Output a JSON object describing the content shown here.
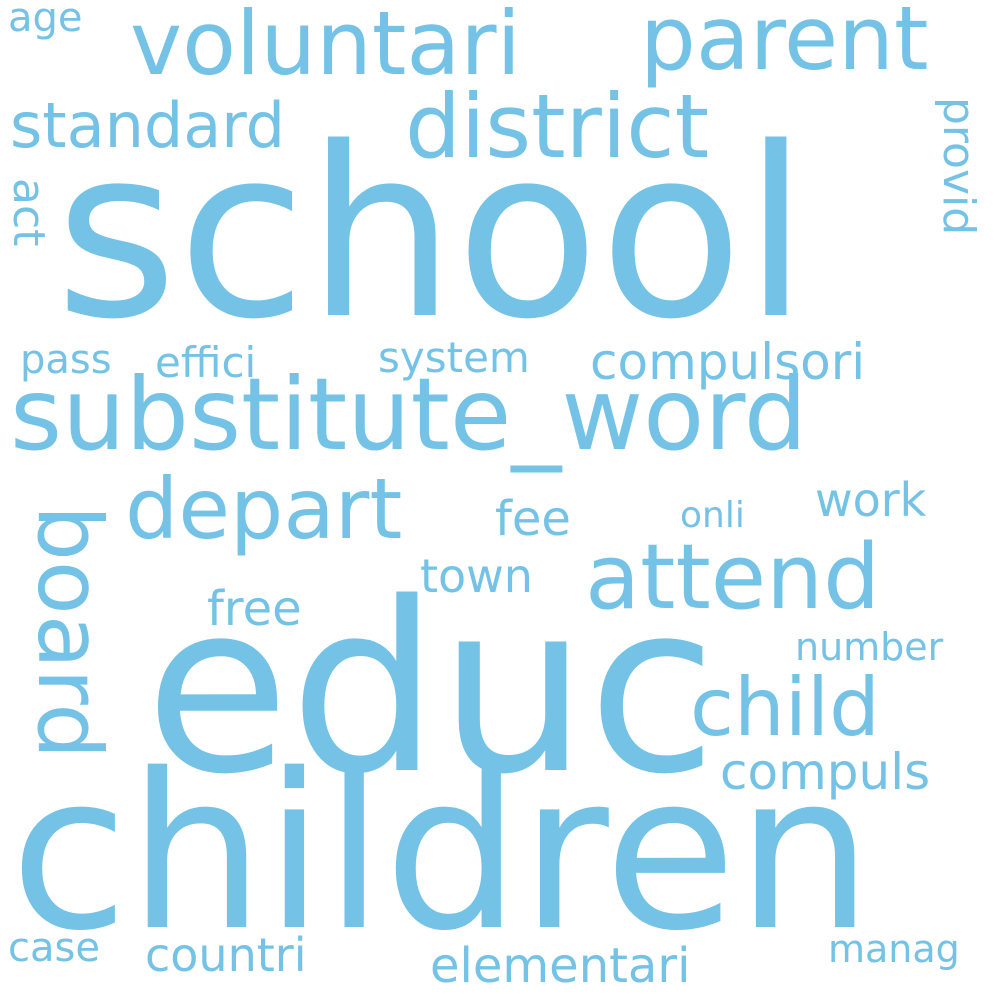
{
  "colors": {
    "background": "#ffffff",
    "word": "#74c3e6"
  },
  "words": {
    "school": "school",
    "educ": "educ",
    "children": "children",
    "substitute_word": "substitute_word",
    "voluntari": "voluntari",
    "parent": "parent",
    "district": "district",
    "depart": "depart",
    "attend": "attend",
    "child": "child",
    "board": "board",
    "standard": "standard",
    "compulsori": "compulsori",
    "compuls": "compuls",
    "elementari": "elementari",
    "countri": "countri",
    "town": "town",
    "free": "free",
    "fee": "fee",
    "work": "work",
    "system": "system",
    "effici": "effici",
    "pass": "pass",
    "onli": "onli",
    "number": "number",
    "manag": "manag",
    "case": "case",
    "age": "age",
    "provid": "provid",
    "act": "act"
  }
}
